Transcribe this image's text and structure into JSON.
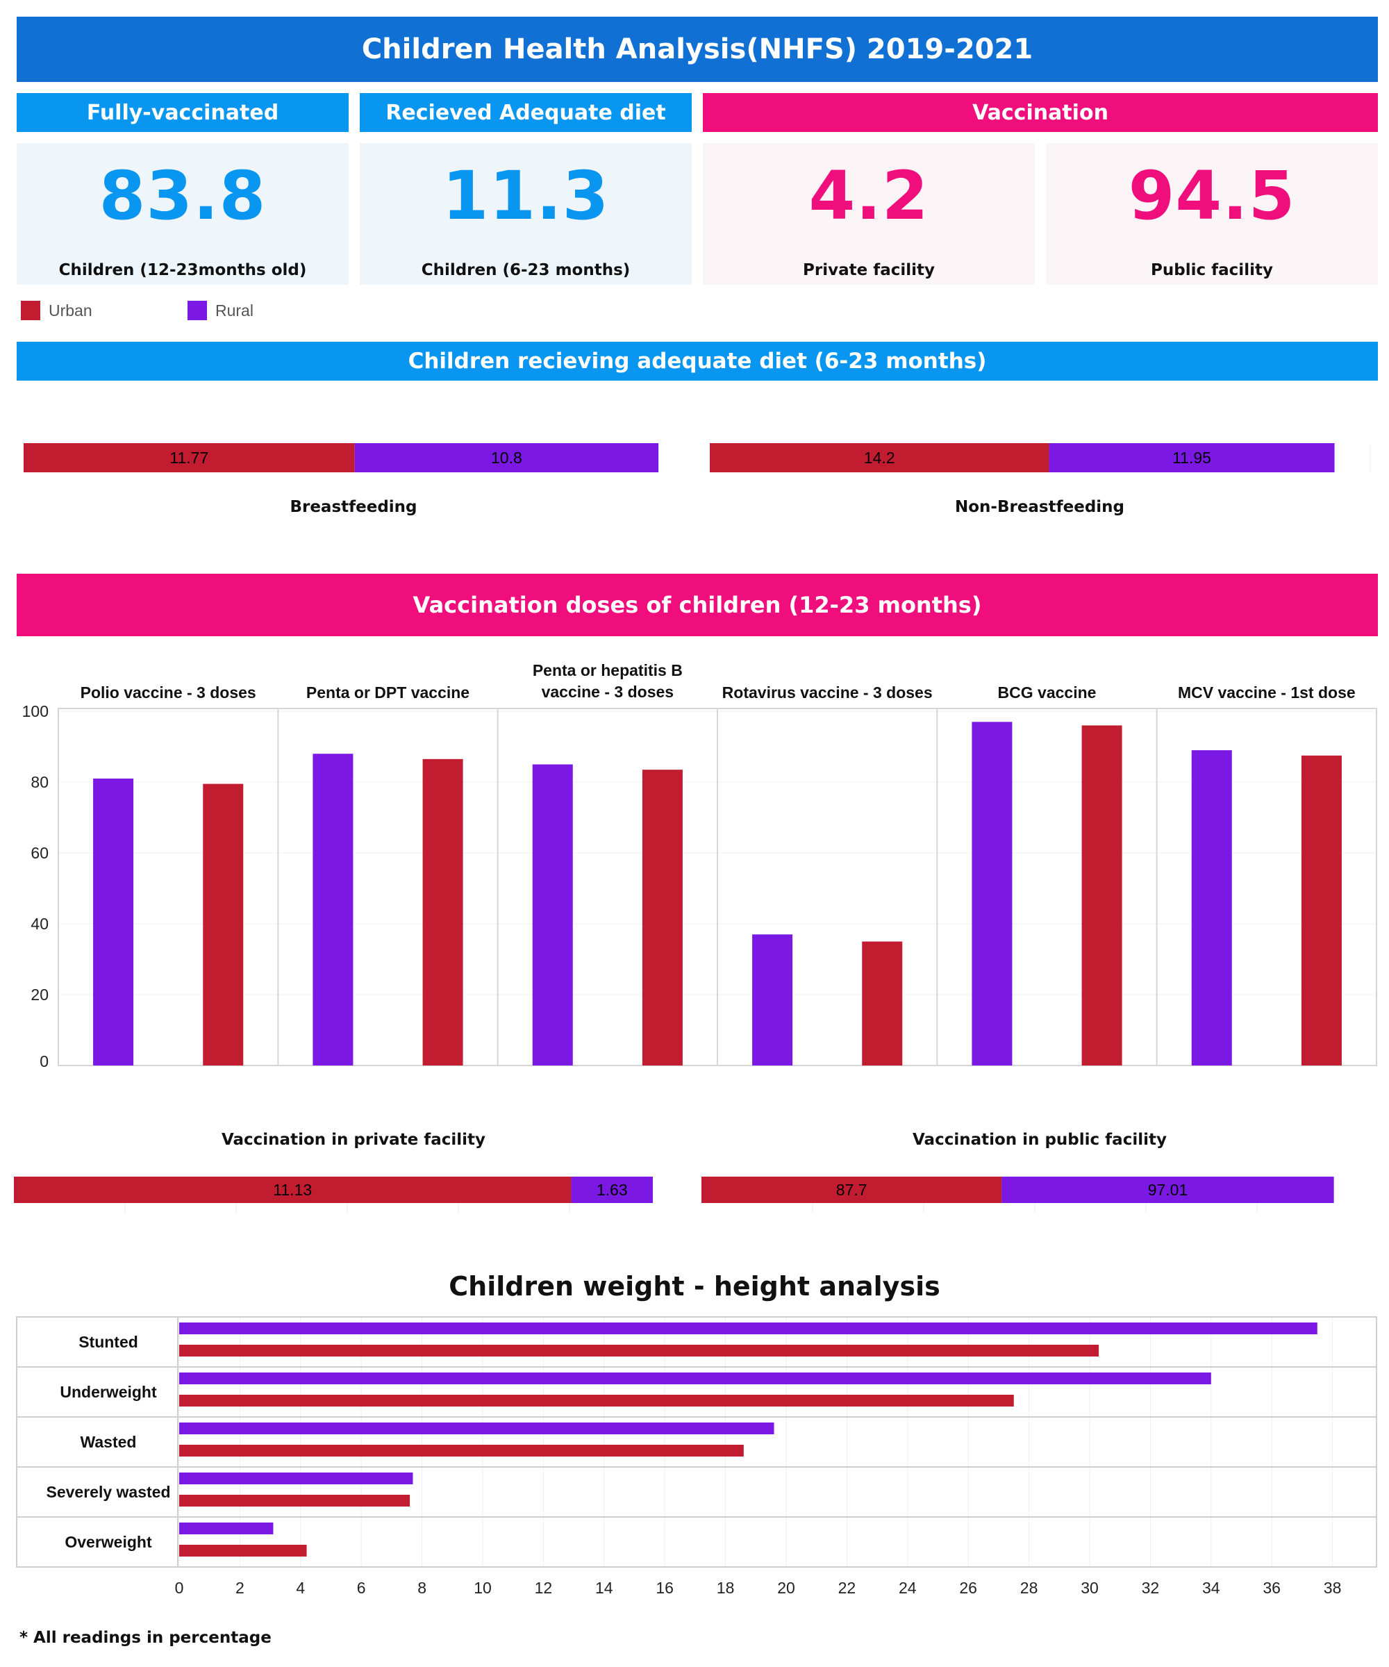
{
  "header": {
    "title": "Children Health Analysis(NHFS) 2019-2021"
  },
  "colors": {
    "blue_header": "#1170d3",
    "blue": "#0896f1",
    "pink": "#f00e7c",
    "urban": "#c21c30",
    "rural": "#7b18e4",
    "kpi_bg_blue": "#eef5fb",
    "kpi_bg_pink": "#fbf5f8"
  },
  "sections": {
    "fully_vaccinated": "Fully-vaccinated",
    "adequate_diet": "Recieved Adequate diet",
    "vaccination": "Vaccination"
  },
  "kpis": [
    {
      "value": "83.8",
      "label": "Children (12-23months old)",
      "color": "#0896f1"
    },
    {
      "value": "11.3",
      "label": "Children (6-23 months)",
      "color": "#0896f1"
    },
    {
      "value": "4.2",
      "label": "Private facility",
      "color": "#f00e7c"
    },
    {
      "value": "94.5",
      "label": "Public facility",
      "color": "#f00e7c"
    }
  ],
  "legend": {
    "urban": "Urban",
    "rural": "Rural"
  },
  "diet": {
    "title": "Children recieving adequate diet (6-23 months)",
    "charts": [
      {
        "label": "Breastfeeding",
        "urban": 11.77,
        "rural": 10.8
      },
      {
        "label": "Non-Breastfeeding",
        "urban": 14.2,
        "rural": 11.95
      }
    ]
  },
  "doses": {
    "title": "Vaccination doses of children (12-23 months)"
  },
  "facility": {
    "charts": [
      {
        "label": "Vaccination in private facility",
        "urban": 11.13,
        "rural": 1.63
      },
      {
        "label": "Vaccination in public facility",
        "urban": 87.7,
        "rural": 97.01
      }
    ]
  },
  "weight": {
    "title": "Children weight - height analysis"
  },
  "footnote": "* All readings in percentage",
  "chart_data": [
    {
      "type": "bar",
      "title": "Vaccination doses of children (12-23 months)",
      "categories": [
        "Polio vaccine - 3 doses",
        "Penta or DPT vaccine",
        "Penta or hepatitis B vaccine - 3 doses",
        "Rotavirus vaccine - 3 doses",
        "BCG vaccine",
        "MCV vaccine - 1st dose"
      ],
      "series": [
        {
          "name": "Rural",
          "values": [
            81,
            88,
            85,
            37,
            97,
            89
          ]
        },
        {
          "name": "Urban",
          "values": [
            79.5,
            86.5,
            83.5,
            35,
            96,
            87.5
          ]
        }
      ],
      "ylim": [
        0,
        100
      ],
      "yticks": [
        0,
        20,
        40,
        60,
        80,
        100
      ],
      "grid": true
    },
    {
      "type": "bar",
      "orientation": "horizontal",
      "title": "Children weight - height analysis",
      "categories": [
        "Stunted",
        "Underweight",
        "Wasted",
        "Severely wasted",
        "Overweight"
      ],
      "series": [
        {
          "name": "Rural",
          "values": [
            37.5,
            34,
            19.6,
            7.7,
            3.1
          ]
        },
        {
          "name": "Urban",
          "values": [
            30.3,
            27.5,
            18.6,
            7.6,
            4.2
          ]
        }
      ],
      "xlim": [
        0,
        38
      ],
      "xticks": [
        0,
        2,
        4,
        6,
        8,
        10,
        12,
        14,
        16,
        18,
        20,
        22,
        24,
        26,
        28,
        30,
        32,
        34,
        36,
        38
      ],
      "grid": true
    }
  ]
}
